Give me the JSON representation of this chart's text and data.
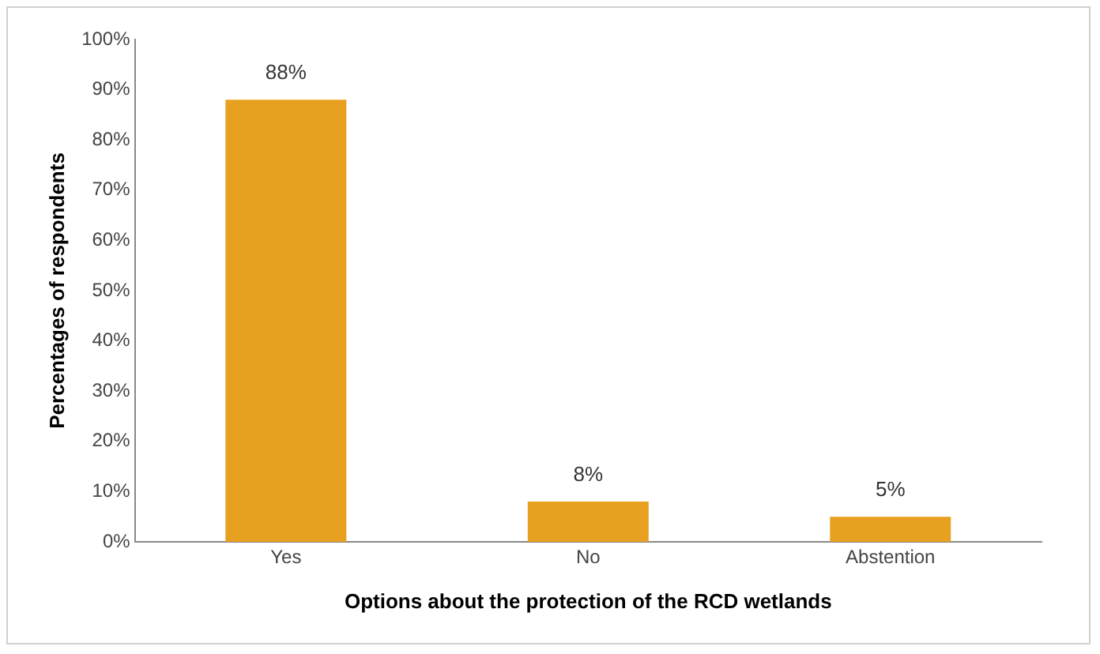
{
  "chart_data": {
    "type": "bar",
    "xlabel": "Options about the protection of the RCD wetlands",
    "ylabel": "Percentages of respondents",
    "categories": [
      "Yes",
      "No",
      "Abstention"
    ],
    "values": [
      88,
      8,
      5
    ],
    "value_labels": [
      "88%",
      "8%",
      "5%"
    ],
    "color": "#e8a020",
    "ylim": [
      0,
      100
    ],
    "yticks": [
      {
        "value": 0,
        "label": "0%"
      },
      {
        "value": 10,
        "label": "10%"
      },
      {
        "value": 20,
        "label": "20%"
      },
      {
        "value": 30,
        "label": "30%"
      },
      {
        "value": 40,
        "label": "40%"
      },
      {
        "value": 50,
        "label": "50%"
      },
      {
        "value": 60,
        "label": "60%"
      },
      {
        "value": 70,
        "label": "70%"
      },
      {
        "value": 80,
        "label": "80%"
      },
      {
        "value": 90,
        "label": "90%"
      },
      {
        "value": 100,
        "label": "100%"
      }
    ],
    "grid": false,
    "legend": false
  }
}
